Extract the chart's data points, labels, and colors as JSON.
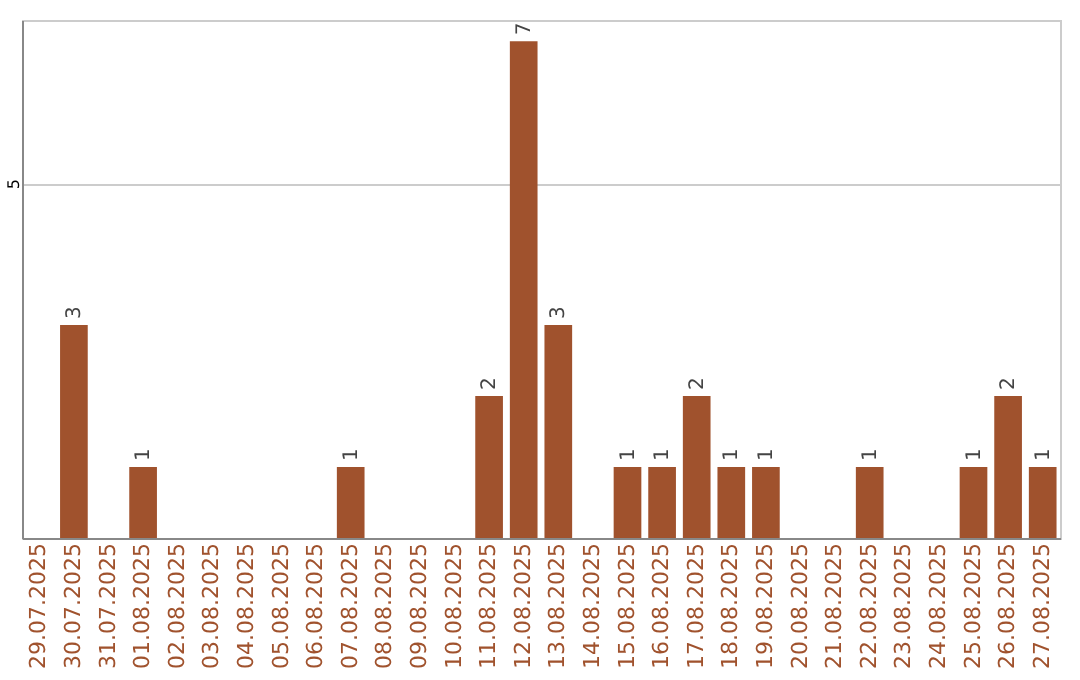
{
  "chart_data": {
    "type": "bar",
    "categories": [
      "29.07.2025",
      "30.07.2025",
      "31.07.2025",
      "01.08.2025",
      "02.08.2025",
      "03.08.2025",
      "04.08.2025",
      "05.08.2025",
      "06.08.2025",
      "07.08.2025",
      "08.08.2025",
      "09.08.2025",
      "10.08.2025",
      "11.08.2025",
      "12.08.2025",
      "13.08.2025",
      "14.08.2025",
      "15.08.2025",
      "16.08.2025",
      "17.08.2025",
      "18.08.2025",
      "19.08.2025",
      "20.08.2025",
      "21.08.2025",
      "22.08.2025",
      "23.08.2025",
      "24.08.2025",
      "25.08.2025",
      "26.08.2025",
      "27.08.2025"
    ],
    "values": [
      0,
      3,
      0,
      1,
      0,
      0,
      0,
      0,
      0,
      1,
      0,
      0,
      0,
      2,
      7,
      3,
      0,
      1,
      1,
      2,
      1,
      1,
      0,
      0,
      1,
      0,
      0,
      1,
      2,
      1
    ],
    "value_labels": [
      null,
      "3",
      null,
      "1",
      null,
      null,
      null,
      null,
      null,
      "1",
      null,
      null,
      null,
      "2",
      "7",
      "3",
      null,
      "1",
      "1",
      "2",
      "1",
      "1",
      null,
      null,
      "1",
      null,
      null,
      "1",
      "2",
      "1"
    ],
    "color": "#a0522d",
    "ylim": [
      0,
      7.3
    ],
    "yticks": [
      5
    ],
    "grid": "y"
  }
}
